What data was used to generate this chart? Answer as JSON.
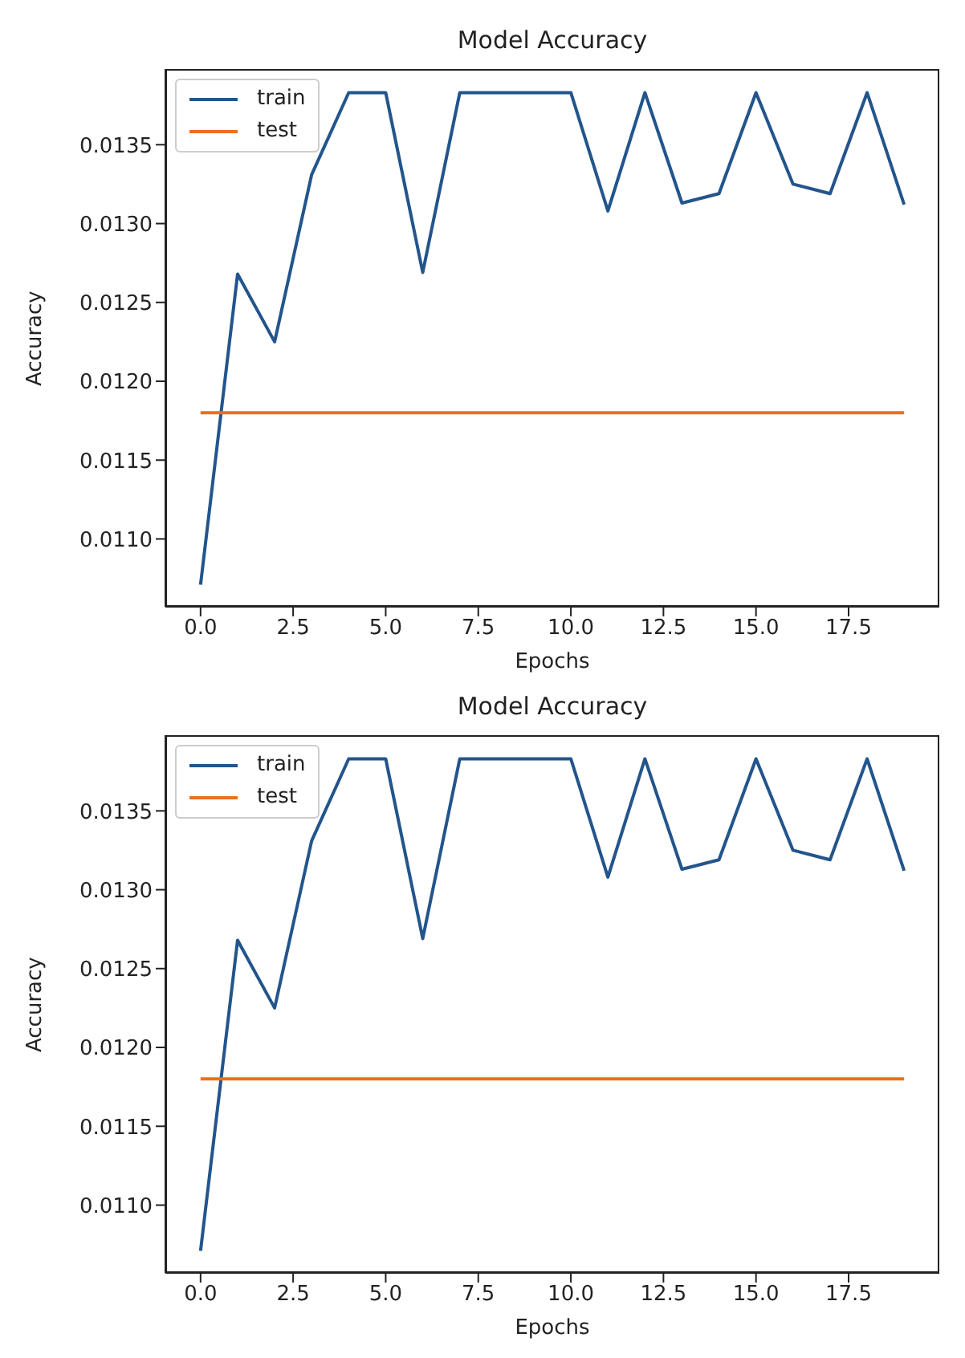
{
  "chart_data": [
    {
      "type": "line",
      "title": "Model Accuracy",
      "xlabel": "Epochs",
      "ylabel": "Accuracy",
      "legend": "top left",
      "grid": false,
      "xlim": [
        -0.95,
        19.95
      ],
      "xticks": [
        {
          "value": 0,
          "label": "0.0"
        },
        {
          "value": 2.5,
          "label": "2.5"
        },
        {
          "value": 5,
          "label": "5.0"
        },
        {
          "value": 7.5,
          "label": "7.5"
        },
        {
          "value": 10,
          "label": "10.0"
        },
        {
          "value": 12.5,
          "label": "12.5"
        },
        {
          "value": 15,
          "label": "15.0"
        },
        {
          "value": 17.5,
          "label": "17.5"
        }
      ],
      "ylim": [
        0.01057,
        0.01398
      ],
      "yticks": [
        {
          "value": 0.011,
          "label": "0.0110"
        },
        {
          "value": 0.0115,
          "label": "0.0115"
        },
        {
          "value": 0.012,
          "label": "0.0120"
        },
        {
          "value": 0.0125,
          "label": "0.0125"
        },
        {
          "value": 0.013,
          "label": "0.0130"
        },
        {
          "value": 0.0135,
          "label": "0.0135"
        }
      ],
      "x": [
        0,
        1,
        2,
        3,
        4,
        5,
        6,
        7,
        8,
        9,
        10,
        11,
        12,
        13,
        14,
        15,
        16,
        17,
        18,
        19
      ],
      "series": [
        {
          "name": "train",
          "color": "#23558c",
          "values": [
            0.01071,
            0.01268,
            0.01225,
            0.01331,
            0.01383,
            0.01383,
            0.01269,
            0.01383,
            0.01383,
            0.01383,
            0.01383,
            0.01308,
            0.01383,
            0.01313,
            0.01319,
            0.01383,
            0.01325,
            0.01319,
            0.01383,
            0.01312
          ]
        },
        {
          "name": "test",
          "color": "#e8711c",
          "values": [
            0.0118,
            0.0118,
            0.0118,
            0.0118,
            0.0118,
            0.0118,
            0.0118,
            0.0118,
            0.0118,
            0.0118,
            0.0118,
            0.0118,
            0.0118,
            0.0118,
            0.0118,
            0.0118,
            0.0118,
            0.0118,
            0.0118,
            0.0118
          ]
        }
      ]
    },
    {
      "type": "line",
      "title": "Model Accuracy",
      "xlabel": "Epochs",
      "ylabel": "Accuracy",
      "legend": "top left",
      "grid": false,
      "xlim": [
        -0.95,
        19.95
      ],
      "xticks": [
        {
          "value": 0,
          "label": "0.0"
        },
        {
          "value": 2.5,
          "label": "2.5"
        },
        {
          "value": 5,
          "label": "5.0"
        },
        {
          "value": 7.5,
          "label": "7.5"
        },
        {
          "value": 10,
          "label": "10.0"
        },
        {
          "value": 12.5,
          "label": "12.5"
        },
        {
          "value": 15,
          "label": "15.0"
        },
        {
          "value": 17.5,
          "label": "17.5"
        }
      ],
      "ylim": [
        0.01057,
        0.01398
      ],
      "yticks": [
        {
          "value": 0.011,
          "label": "0.0110"
        },
        {
          "value": 0.0115,
          "label": "0.0115"
        },
        {
          "value": 0.012,
          "label": "0.0120"
        },
        {
          "value": 0.0125,
          "label": "0.0125"
        },
        {
          "value": 0.013,
          "label": "0.0130"
        },
        {
          "value": 0.0135,
          "label": "0.0135"
        }
      ],
      "x": [
        0,
        1,
        2,
        3,
        4,
        5,
        6,
        7,
        8,
        9,
        10,
        11,
        12,
        13,
        14,
        15,
        16,
        17,
        18,
        19
      ],
      "series": [
        {
          "name": "train",
          "color": "#23558c",
          "values": [
            0.01071,
            0.01268,
            0.01225,
            0.01331,
            0.01383,
            0.01383,
            0.01269,
            0.01383,
            0.01383,
            0.01383,
            0.01383,
            0.01308,
            0.01383,
            0.01313,
            0.01319,
            0.01383,
            0.01325,
            0.01319,
            0.01383,
            0.01312
          ]
        },
        {
          "name": "test",
          "color": "#e8711c",
          "values": [
            0.0118,
            0.0118,
            0.0118,
            0.0118,
            0.0118,
            0.0118,
            0.0118,
            0.0118,
            0.0118,
            0.0118,
            0.0118,
            0.0118,
            0.0118,
            0.0118,
            0.0118,
            0.0118,
            0.0118,
            0.0118,
            0.0118,
            0.0118
          ]
        }
      ]
    }
  ]
}
